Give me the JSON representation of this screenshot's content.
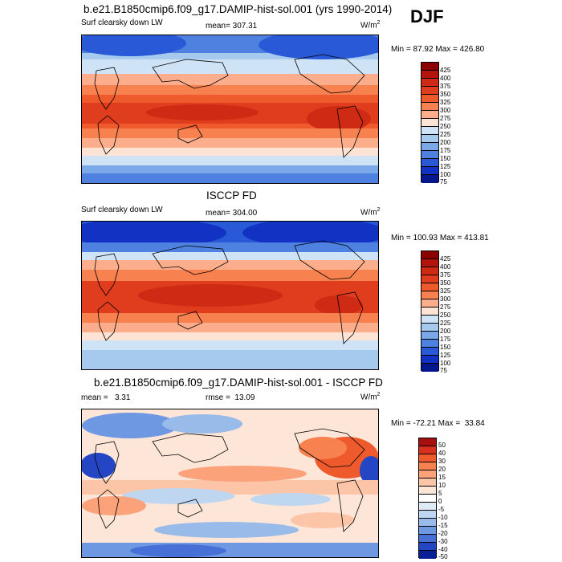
{
  "season": "DJF",
  "chart_data": [
    {
      "type": "heatmap",
      "title": "b.e21.B1850cmip6.f09_g17.DAMIP-hist-sol.001 (yrs 1990-2014)",
      "left_label": "Surf clearsky down LW",
      "center_label": "mean= 307.31",
      "units_base": "W/m",
      "units_exp": "2",
      "minmax": "Min =  87.92 Max = 426.80",
      "min": 87.92,
      "max": 426.8,
      "mean": 307.31,
      "levels": [
        "425",
        "400",
        "375",
        "350",
        "325",
        "300",
        "275",
        "250",
        "225",
        "200",
        "175",
        "150",
        "125",
        "100",
        "75"
      ],
      "colors": [
        "#8b0000",
        "#b3140e",
        "#cf2a13",
        "#e03c1e",
        "#ee5a2c",
        "#f7814f",
        "#fcae8c",
        "#fde3d3",
        "#cfe3f6",
        "#a6c9ee",
        "#7aa8e8",
        "#4f82e0",
        "#2a59d8",
        "#1232c4",
        "#06168c"
      ]
    },
    {
      "type": "heatmap",
      "title": "ISCCP FD",
      "left_label": "Surf clearsky down LW",
      "center_label": "mean= 304.00",
      "units_base": "W/m",
      "units_exp": "2",
      "minmax": "Min = 100.93 Max = 413.81",
      "min": 100.93,
      "max": 413.81,
      "mean": 304.0,
      "levels": [
        "425",
        "400",
        "375",
        "350",
        "325",
        "300",
        "275",
        "250",
        "225",
        "200",
        "175",
        "150",
        "125",
        "100",
        "75"
      ],
      "colors": [
        "#8b0000",
        "#b3140e",
        "#cf2a13",
        "#e03c1e",
        "#ee5a2c",
        "#f7814f",
        "#fcae8c",
        "#fde3d3",
        "#cfe3f6",
        "#a6c9ee",
        "#7aa8e8",
        "#4f82e0",
        "#2a59d8",
        "#1232c4",
        "#06168c"
      ]
    },
    {
      "type": "heatmap",
      "title": "b.e21.B1850cmip6.f09_g17.DAMIP-hist-sol.001 - ISCCP FD",
      "left_label": "mean =   3.31",
      "center_label": "rmse =  13.09",
      "units_base": "W/m",
      "units_exp": "2",
      "minmax": "Min = -72.21 Max =  33.84",
      "min": -72.21,
      "max": 33.84,
      "mean": 3.31,
      "rmse": 13.09,
      "levels": [
        "50",
        "40",
        "30",
        "20",
        "15",
        "10",
        "5",
        "0",
        "-5",
        "-10",
        "-15",
        "-20",
        "-30",
        "-40",
        "-50"
      ],
      "colors": [
        "#a40f0f",
        "#d7301f",
        "#ee5a2c",
        "#f7814f",
        "#fba27a",
        "#fdc5a8",
        "#fde6d8",
        "#ffffff",
        "#dfeaf7",
        "#bfd6f0",
        "#98bbe9",
        "#6f98e2",
        "#4670d6",
        "#2446c4",
        "#0a1f95"
      ]
    }
  ]
}
